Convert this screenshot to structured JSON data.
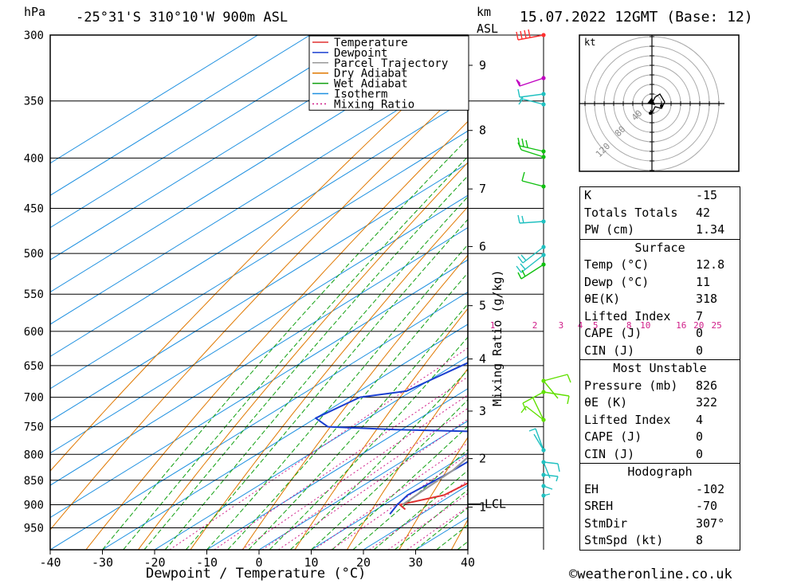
{
  "header": {
    "hpa_label": "hPa",
    "location": "-25°31'S 310°10'W 900m ASL",
    "km_label": "km",
    "asl_label": "ASL",
    "datetime": "15.07.2022 12GMT (Base: 12)"
  },
  "chart_data": {
    "type": "line",
    "title": "-25°31'S 310°10'W 900m ASL",
    "xlabel": "Dewpoint / Temperature (°C)",
    "ylabel": "hPa",
    "xlim": [
      -40,
      40
    ],
    "ylim": [
      1000,
      300
    ],
    "yscale": "log",
    "grid": true,
    "legend_position": "top-right",
    "x_ticks": [
      "-40",
      "-30",
      "-20",
      "-10",
      "0",
      "10",
      "20",
      "30",
      "40"
    ],
    "pressure_ticks": [
      "300",
      "350",
      "400",
      "450",
      "500",
      "550",
      "600",
      "650",
      "700",
      "750",
      "800",
      "850",
      "900",
      "950"
    ],
    "km_ticks": [
      {
        "label": "9",
        "p": 322
      },
      {
        "label": "8",
        "p": 375
      },
      {
        "label": "7",
        "p": 430
      },
      {
        "label": "6",
        "p": 492
      },
      {
        "label": "5",
        "p": 565
      },
      {
        "label": "4",
        "p": 640
      },
      {
        "label": "3",
        "p": 723
      },
      {
        "label": "2",
        "p": 808
      },
      {
        "label": "1",
        "p": 905
      }
    ],
    "lcl": {
      "label": "LCL",
      "p": 898
    },
    "mixing_ratio_label": "Mixing Ratio (g/kg)",
    "mixing_ratio_ticks": [
      {
        "label": "1",
        "t600": -16
      },
      {
        "label": "2",
        "t600": -6.5
      },
      {
        "label": "3",
        "t600": -1
      },
      {
        "label": "4",
        "t600": 3
      },
      {
        "label": "5",
        "t600": 9
      },
      {
        "label": "8",
        "t600": 14
      },
      {
        "label": "10",
        "t600": 18.5
      },
      {
        "label": "16",
        "t600": 26.5
      },
      {
        "label": "20",
        "t600": 31
      },
      {
        "label": "25",
        "t600": 34
      }
    ],
    "legend": [
      {
        "name": "Temperature",
        "color": "#e03030",
        "dash": false
      },
      {
        "name": "Dewpoint",
        "color": "#1a3fd0",
        "dash": false
      },
      {
        "name": "Parcel Trajectory",
        "color": "#999999",
        "dash": false
      },
      {
        "name": "Dry Adiabat",
        "color": "#e07800",
        "dash": false
      },
      {
        "name": "Wet Adiabat",
        "color": "#10a010",
        "dash": false
      },
      {
        "name": "Isotherm",
        "color": "#1e90e0",
        "dash": false
      },
      {
        "name": "Mixing Ratio",
        "color": "#d0208a",
        "dash": true
      }
    ],
    "series": [
      {
        "name": "Temperature",
        "color": "#e03030",
        "points": [
          [
            910,
            15.5
          ],
          [
            900,
            13
          ],
          [
            880,
            18.5
          ],
          [
            850,
            19.5
          ],
          [
            820,
            17.5
          ],
          [
            780,
            14
          ],
          [
            765,
            16
          ],
          [
            755,
            20
          ],
          [
            745,
            21.5
          ],
          [
            710,
            22.5
          ],
          [
            700,
            25.5
          ],
          [
            650,
            20
          ],
          [
            600,
            15.5
          ],
          [
            560,
            9.5
          ],
          [
            500,
            3
          ],
          [
            480,
            1.5
          ],
          [
            470,
            2
          ],
          [
            450,
            2
          ],
          [
            420,
            0
          ],
          [
            380,
            -5
          ],
          [
            350,
            -10
          ],
          [
            330,
            -11
          ],
          [
            325,
            -9
          ],
          [
            305,
            -9.5
          ],
          [
            300,
            -10
          ]
        ]
      },
      {
        "name": "Dewpoint",
        "color": "#1a3fd0",
        "points": [
          [
            920,
            14
          ],
          [
            900,
            12.5
          ],
          [
            880,
            11.5
          ],
          [
            840,
            12.5
          ],
          [
            770,
            13
          ],
          [
            760,
            12.5
          ],
          [
            755,
            -11
          ],
          [
            750,
            -25
          ],
          [
            735,
            -30
          ],
          [
            700,
            -28
          ],
          [
            690,
            -21
          ],
          [
            540,
            -10
          ],
          [
            500,
            -9
          ],
          [
            480,
            -8.5
          ],
          [
            470,
            -15
          ],
          [
            460,
            -21
          ],
          [
            435,
            -24
          ],
          [
            420,
            -24
          ],
          [
            340,
            -20
          ],
          [
            330,
            -18
          ],
          [
            320,
            -21
          ],
          [
            315,
            -20
          ],
          [
            300,
            -23
          ]
        ]
      },
      {
        "name": "Parcel Trajectory",
        "color": "#999999",
        "points": [
          [
            900,
            13.5
          ],
          [
            870,
            13
          ],
          [
            830,
            12.5
          ],
          [
            800,
            11
          ],
          [
            750,
            8
          ],
          [
            700,
            5.2
          ],
          [
            650,
            2.3
          ],
          [
            600,
            -1.2
          ],
          [
            550,
            -5
          ],
          [
            500,
            -9.5
          ],
          [
            450,
            -14.5
          ],
          [
            400,
            -20.5
          ],
          [
            350,
            -28
          ],
          [
            300,
            -36
          ]
        ]
      }
    ]
  },
  "wind_barb_colors": [
    "#ff3030",
    "#c000c0",
    "#20c0c0",
    "#10c010",
    "#60e000",
    "#20c0c0"
  ],
  "hodograph": {
    "unit_label": "kt",
    "ring_labels": [
      "40",
      "80",
      "120"
    ]
  },
  "indices": {
    "k_label": "K",
    "k_value": "-15",
    "tt_label": "Totals Totals",
    "tt_value": "42",
    "pw_label": "PW (cm)",
    "pw_value": "1.34",
    "surface_header": "Surface",
    "sfc_temp_label": "Temp (°C)",
    "sfc_temp_value": "12.8",
    "sfc_dewp_label": "Dewp (°C)",
    "sfc_dewp_value": "11",
    "sfc_theta_label": "θE(K)",
    "sfc_theta_value": "318",
    "sfc_li_label": "Lifted Index",
    "sfc_li_value": "7",
    "sfc_cape_label": "CAPE (J)",
    "sfc_cape_value": "0",
    "sfc_cin_label": "CIN (J)",
    "sfc_cin_value": "0",
    "mu_header": "Most Unstable",
    "mu_pres_label": "Pressure (mb)",
    "mu_pres_value": "826",
    "mu_theta_label": "θE (K)",
    "mu_theta_value": "322",
    "mu_li_label": "Lifted Index",
    "mu_li_value": "4",
    "mu_cape_label": "CAPE (J)",
    "mu_cape_value": "0",
    "mu_cin_label": "CIN (J)",
    "mu_cin_value": "0",
    "hodo_header": "Hodograph",
    "eh_label": "EH",
    "eh_value": "-102",
    "sreh_label": "SREH",
    "sreh_value": "-70",
    "stmdir_label": "StmDir",
    "stmdir_value": "307°",
    "stmspd_label": "StmSpd (kt)",
    "stmspd_value": "8"
  },
  "footer": {
    "copyright": "©weatheronline.co.uk"
  }
}
